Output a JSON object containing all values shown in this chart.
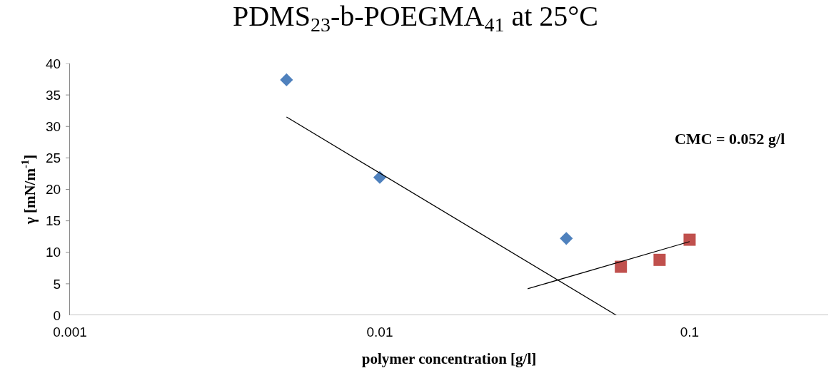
{
  "chart_data": {
    "type": "scatter",
    "title": "PDMS$_{23}$-b-POEGMA$_{41}$ at 25°C",
    "xlabel": "polymer concentration [g/l]",
    "ylabel": "γ [mN/m$^{-1}$]",
    "annotations": [
      "CMC = 0.052 g/l"
    ],
    "log": "x",
    "grid": false,
    "xlim": [
      0.001,
      0.28
    ],
    "xticks": [
      0.001,
      0.01,
      0.1
    ],
    "ylim": [
      0,
      40
    ],
    "yticks": [
      0,
      5,
      10,
      15,
      20,
      25,
      30,
      35,
      40
    ],
    "series": [
      {
        "type": "scatter",
        "marker": "diamond",
        "color": "#4f81bd",
        "x": [
          0.005,
          0.01,
          0.04
        ],
        "values": [
          37.4,
          21.9,
          12.2
        ]
      },
      {
        "type": "scatter",
        "marker": "square",
        "color": "#c0504d",
        "x": [
          0.06,
          0.08,
          0.1
        ],
        "values": [
          7.7,
          8.8,
          12.0
        ]
      },
      {
        "type": "line",
        "marker": "none",
        "color": "#000000",
        "x": [
          0.005,
          0.058
        ],
        "values": [
          31.5,
          0
        ]
      },
      {
        "type": "line",
        "marker": "none",
        "color": "#000000",
        "x": [
          0.03,
          0.1
        ],
        "values": [
          4.2,
          11.7
        ]
      }
    ]
  }
}
